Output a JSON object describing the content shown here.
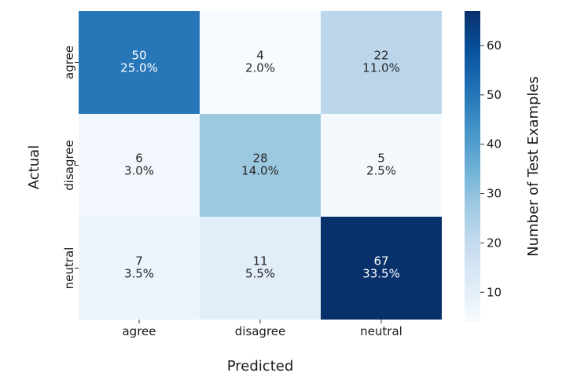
{
  "chart_data": {
    "type": "heatmap",
    "title": "",
    "xlabel": "Predicted",
    "ylabel": "Actual",
    "x_categories": [
      "agree",
      "disagree",
      "neutral"
    ],
    "y_categories": [
      "agree",
      "disagree",
      "neutral"
    ],
    "values": [
      [
        50,
        4,
        22
      ],
      [
        6,
        28,
        5
      ],
      [
        7,
        11,
        67
      ]
    ],
    "percent_labels": [
      [
        "25.0%",
        "2.0%",
        "11.0%"
      ],
      [
        "3.0%",
        "14.0%",
        "2.5%"
      ],
      [
        "3.5%",
        "5.5%",
        "33.5%"
      ]
    ],
    "colorbar": {
      "label": "Number of Test Examples",
      "range": [
        4,
        67
      ],
      "ticks": [
        10,
        20,
        30,
        40,
        50,
        60
      ],
      "colormap": "Blues"
    },
    "grid": false
  }
}
